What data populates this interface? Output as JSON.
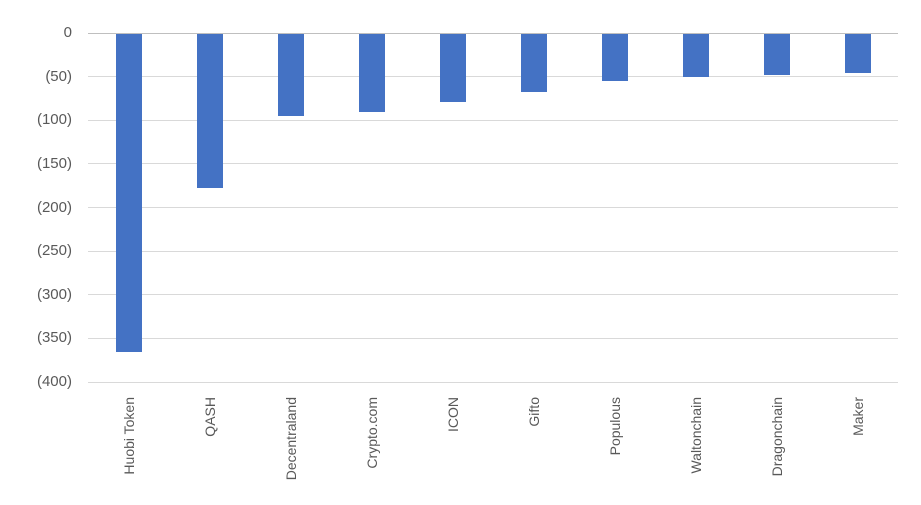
{
  "chart_data": {
    "type": "bar",
    "title": "",
    "xlabel": "",
    "ylabel": "",
    "orientation": "vertical",
    "categories": [
      "Huobi Token",
      "QASH",
      "Decentraland",
      "Crypto.com",
      "ICON",
      "Gifto",
      "Populous",
      "Waltonchain",
      "Dragonchain",
      "Maker"
    ],
    "values": [
      -365,
      -177,
      -94,
      -90,
      -78,
      -67,
      -54,
      -50,
      -47,
      -45
    ],
    "ylim": [
      -400,
      0
    ],
    "y_tick_step": 50,
    "y_ticks": [
      {
        "value": 0,
        "label": "0"
      },
      {
        "value": -50,
        "label": "(50)"
      },
      {
        "value": -100,
        "label": "(100)"
      },
      {
        "value": -150,
        "label": "(150)"
      },
      {
        "value": -200,
        "label": "(200)"
      },
      {
        "value": -250,
        "label": "(250)"
      },
      {
        "value": -300,
        "label": "(300)"
      },
      {
        "value": -350,
        "label": "(350)"
      },
      {
        "value": -400,
        "label": "(400)"
      }
    ],
    "x_tick_label_rotation_deg": -90,
    "grid": "horizontal",
    "legend": "none",
    "colors": {
      "bar": "#4472C4",
      "gridline": "#d9d9d9",
      "zero_axis_line": "#bfbfbf",
      "label_text": "#595959",
      "background": "#ffffff"
    }
  }
}
